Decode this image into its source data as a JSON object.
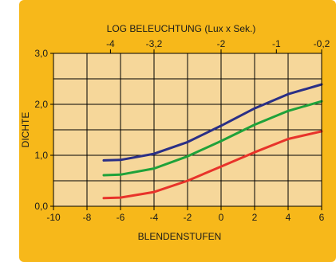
{
  "chart_data": {
    "type": "line",
    "xlabel": "BLENDENSTUFEN",
    "top_xlabel": "LOG BELEUCHTUNG (Lux x Sek.)",
    "ylabel": "DICHTE",
    "xlim": [
      -10,
      6
    ],
    "ylim": [
      0,
      3
    ],
    "x_ticks": [
      -10,
      -8,
      -6,
      -4,
      -2,
      0,
      2,
      4,
      6
    ],
    "y_ticks": [
      0,
      1,
      2,
      3
    ],
    "x_tick_labels": [
      "-10",
      "-8",
      "-6",
      "-4",
      "-2",
      "0",
      "2",
      "4",
      "6"
    ],
    "y_tick_labels": [
      "0,0",
      "1,0",
      "2,0",
      "3,0"
    ],
    "top_ticks": [
      {
        "label": "-4",
        "x": -6.6
      },
      {
        "label": "-3,2",
        "x": -4
      },
      {
        "label": "-2",
        "x": 0
      },
      {
        "label": "-1",
        "x": 3.3
      },
      {
        "label": "-0,2",
        "x": 6
      }
    ],
    "grid": true,
    "series": [
      {
        "color": "#2a2f86",
        "x": [
          -7,
          -6,
          -4,
          -2,
          0,
          2,
          4,
          6
        ],
        "y": [
          0.9,
          0.91,
          1.03,
          1.26,
          1.58,
          1.92,
          2.2,
          2.39
        ]
      },
      {
        "color": "#1fa23a",
        "x": [
          -7,
          -6,
          -4,
          -2,
          0,
          2,
          4,
          6
        ],
        "y": [
          0.61,
          0.62,
          0.74,
          0.98,
          1.28,
          1.6,
          1.87,
          2.06
        ]
      },
      {
        "color": "#e8332a",
        "x": [
          -7,
          -6,
          -4,
          -2,
          0,
          2,
          4,
          6
        ],
        "y": [
          0.16,
          0.17,
          0.28,
          0.5,
          0.78,
          1.06,
          1.32,
          1.47
        ]
      }
    ]
  }
}
